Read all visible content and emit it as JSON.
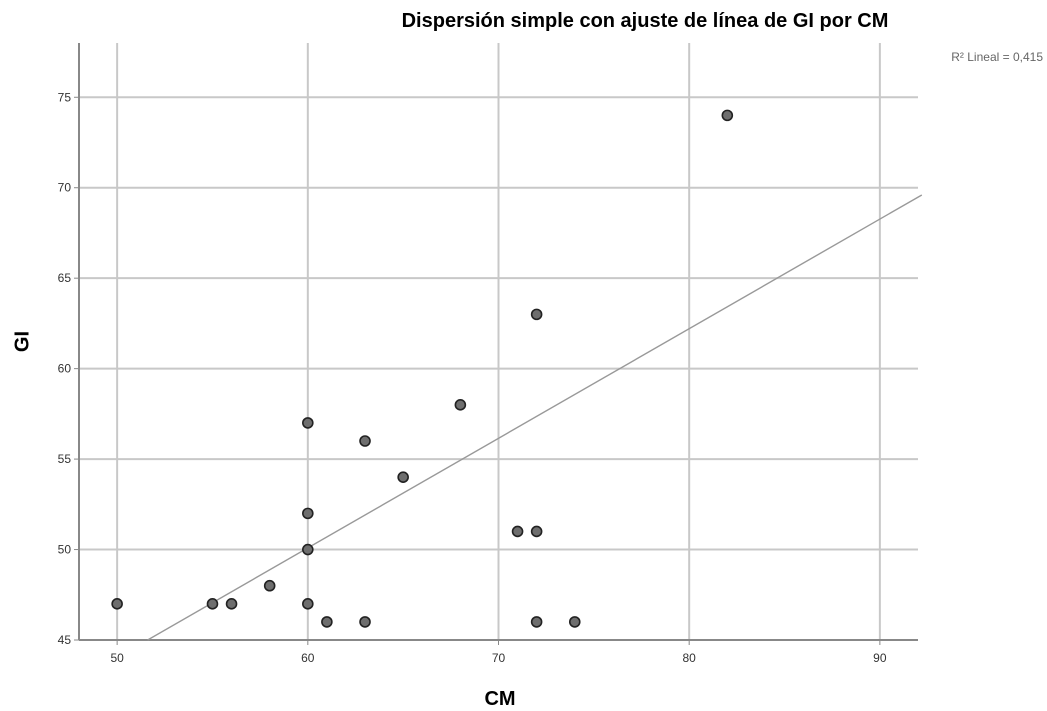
{
  "chart_data": {
    "type": "scatter",
    "title": "Dispersión simple con ajuste de línea de GI por CM",
    "xlabel": "CM",
    "ylabel": "GI",
    "xlim": [
      48,
      92
    ],
    "ylim": [
      45,
      78
    ],
    "xticks": [
      "50",
      "60",
      "70",
      "80",
      "90"
    ],
    "yticks": [
      "45",
      "50",
      "55",
      "60",
      "65",
      "70",
      "75"
    ],
    "xtick_values": [
      50,
      60,
      70,
      80,
      90
    ],
    "ytick_values": [
      45,
      50,
      55,
      60,
      65,
      70,
      75
    ],
    "grid": true,
    "points": [
      {
        "x": 50,
        "y": 47
      },
      {
        "x": 55,
        "y": 47
      },
      {
        "x": 56,
        "y": 47
      },
      {
        "x": 58,
        "y": 48
      },
      {
        "x": 60,
        "y": 57
      },
      {
        "x": 60,
        "y": 52
      },
      {
        "x": 60,
        "y": 50
      },
      {
        "x": 60,
        "y": 47
      },
      {
        "x": 61,
        "y": 46
      },
      {
        "x": 63,
        "y": 56
      },
      {
        "x": 63,
        "y": 46
      },
      {
        "x": 65,
        "y": 54
      },
      {
        "x": 68,
        "y": 58
      },
      {
        "x": 71,
        "y": 51
      },
      {
        "x": 72,
        "y": 63
      },
      {
        "x": 72,
        "y": 51
      },
      {
        "x": 72,
        "y": 46
      },
      {
        "x": 74,
        "y": 46
      },
      {
        "x": 82,
        "y": 74
      }
    ],
    "fit_line": {
      "type": "linear",
      "x": [
        51.6,
        92.2
      ],
      "y": [
        45,
        69.6
      ]
    },
    "annotation": "R² Lineal = 0,415"
  }
}
